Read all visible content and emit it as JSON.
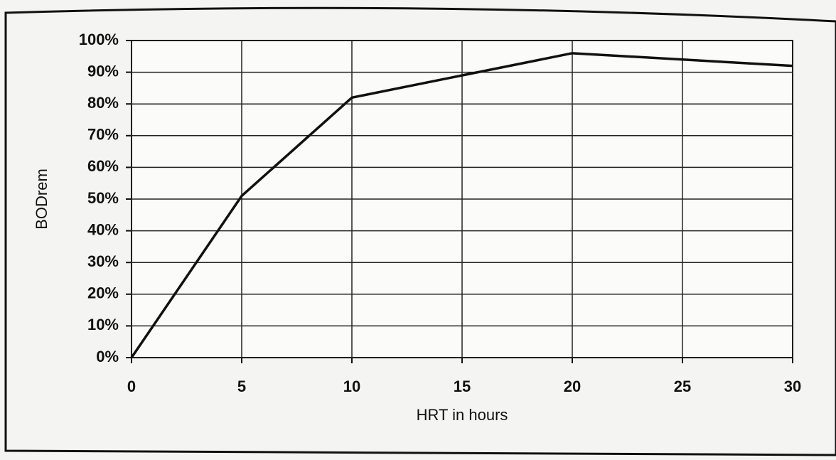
{
  "chart_data": {
    "type": "line",
    "x_label": "HRT in hours",
    "y_label": "BODrem",
    "x": [
      0,
      5,
      10,
      20,
      30
    ],
    "values": [
      0,
      51,
      82,
      96,
      92
    ],
    "color": "#111111",
    "xlim": [
      0,
      30
    ],
    "xticks": [
      0,
      5,
      10,
      15,
      20,
      25,
      30
    ],
    "ylim": [
      0,
      100
    ],
    "yticks": [
      {
        "value": 0,
        "label": "0%"
      },
      {
        "value": 10,
        "label": "10%"
      },
      {
        "value": 20,
        "label": "20%"
      },
      {
        "value": 30,
        "label": "30%"
      },
      {
        "value": 40,
        "label": "40%"
      },
      {
        "value": 50,
        "label": "50%"
      },
      {
        "value": 60,
        "label": "60%"
      },
      {
        "value": 70,
        "label": "70%"
      },
      {
        "value": 80,
        "label": "80%"
      },
      {
        "value": 90,
        "label": "90%"
      },
      {
        "value": 100,
        "label": "100%"
      }
    ],
    "grid": true
  }
}
